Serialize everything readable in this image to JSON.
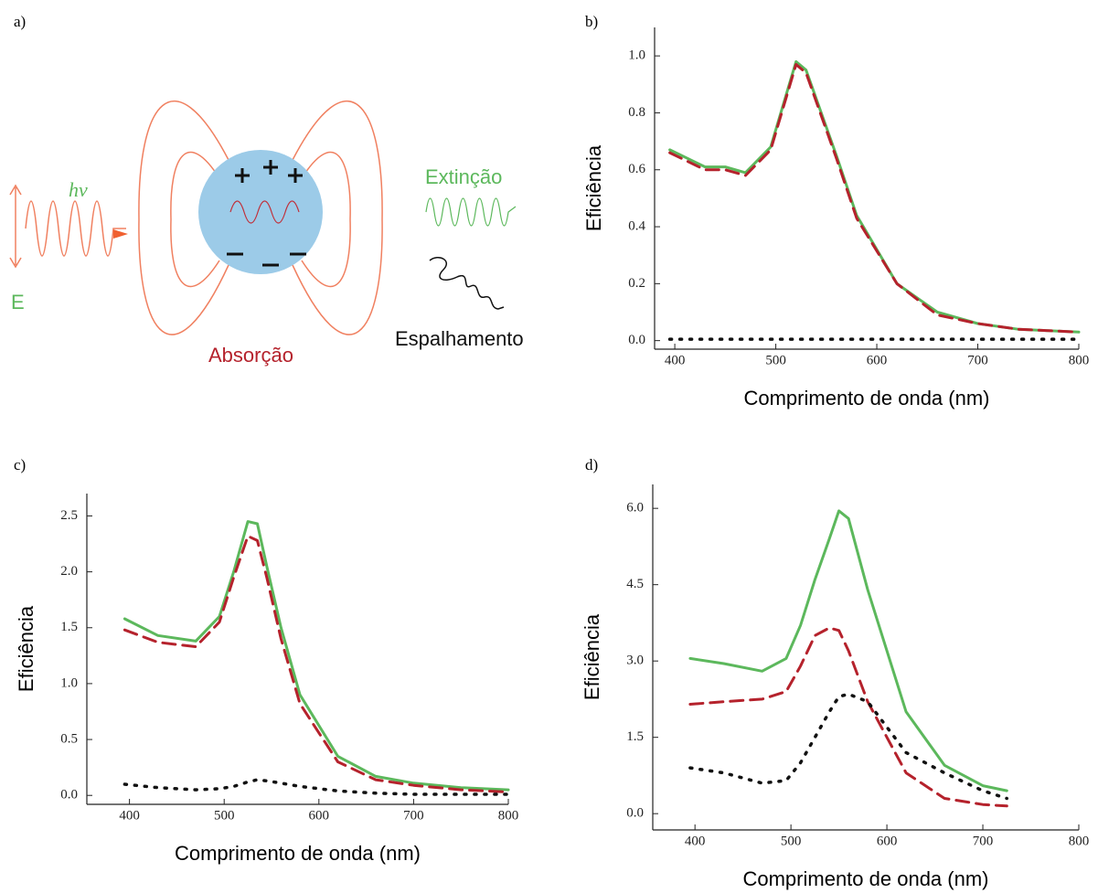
{
  "diagram": {
    "panel": "a)",
    "photon": "hν",
    "field": "E",
    "extinction": "Extinção",
    "scattering": "Espalhamento",
    "absorption": "Absorção"
  },
  "chart_data": [
    {
      "type": "line",
      "panel": "b)",
      "xlabel": "Comprimento de onda (nm)",
      "ylabel": "Eficiência",
      "x": [
        395,
        430,
        450,
        470,
        495,
        510,
        520,
        530,
        545,
        560,
        580,
        620,
        660,
        700,
        740,
        800
      ],
      "series": [
        {
          "color": "#5cb85c",
          "style": "solid",
          "values": [
            0.67,
            0.61,
            0.61,
            0.59,
            0.68,
            0.86,
            0.98,
            0.95,
            0.8,
            0.65,
            0.44,
            0.2,
            0.1,
            0.06,
            0.04,
            0.03
          ]
        },
        {
          "color": "#b5222c",
          "style": "dashed",
          "values": [
            0.66,
            0.6,
            0.6,
            0.58,
            0.67,
            0.85,
            0.97,
            0.94,
            0.79,
            0.64,
            0.43,
            0.2,
            0.09,
            0.06,
            0.04,
            0.03
          ]
        },
        {
          "color": "#111111",
          "style": "dotted",
          "values": [
            0.005,
            0.005,
            0.005,
            0.005,
            0.005,
            0.005,
            0.005,
            0.005,
            0.005,
            0.005,
            0.005,
            0.005,
            0.005,
            0.005,
            0.005,
            0.005
          ]
        }
      ],
      "xlim": [
        380,
        800
      ],
      "ylim": [
        -0.03,
        1.1
      ],
      "xticks": [
        400,
        500,
        600,
        700,
        800
      ],
      "yticks": [
        {
          "value": 0,
          "label": "0.0"
        },
        0.2,
        0.4,
        0.6,
        0.8,
        {
          "value": 1,
          "label": "1.0"
        }
      ]
    },
    {
      "type": "line",
      "panel": "c)",
      "xlabel": "Comprimento de onda (nm)",
      "ylabel": "Eficiência",
      "x": [
        395,
        430,
        470,
        495,
        510,
        525,
        535,
        545,
        560,
        580,
        620,
        660,
        700,
        750,
        800
      ],
      "series": [
        {
          "color": "#5cb85c",
          "style": "solid",
          "values": [
            1.58,
            1.43,
            1.38,
            1.6,
            2.0,
            2.45,
            2.43,
            2.05,
            1.5,
            0.9,
            0.35,
            0.17,
            0.11,
            0.07,
            0.05
          ]
        },
        {
          "color": "#b5222c",
          "style": "dashed",
          "values": [
            1.48,
            1.37,
            1.33,
            1.55,
            1.95,
            2.32,
            2.28,
            1.95,
            1.4,
            0.82,
            0.3,
            0.14,
            0.09,
            0.05,
            0.03
          ]
        },
        {
          "color": "#111111",
          "style": "dotted",
          "values": [
            0.1,
            0.07,
            0.05,
            0.06,
            0.08,
            0.12,
            0.14,
            0.13,
            0.11,
            0.08,
            0.04,
            0.02,
            0.01,
            0.01,
            0.01
          ]
        }
      ],
      "xlim": [
        355,
        800
      ],
      "ylim": [
        -0.08,
        2.7
      ],
      "xticks": [
        400,
        500,
        600,
        700,
        800
      ],
      "yticks": [
        {
          "value": 0,
          "label": "0.0"
        },
        0.5,
        {
          "value": 1,
          "label": "1.0"
        },
        1.5,
        {
          "value": 2,
          "label": "2.0"
        },
        2.5
      ]
    },
    {
      "type": "line",
      "panel": "d)",
      "xlabel": "Comprimento de onda (nm)",
      "ylabel": "Eficiência",
      "x": [
        395,
        430,
        470,
        495,
        510,
        525,
        540,
        550,
        560,
        580,
        620,
        660,
        700,
        725
      ],
      "series": [
        {
          "color": "#5cb85c",
          "style": "solid",
          "values": [
            3.05,
            2.95,
            2.8,
            3.05,
            3.7,
            4.6,
            5.4,
            5.95,
            5.8,
            4.4,
            2.0,
            0.95,
            0.55,
            0.45
          ]
        },
        {
          "color": "#b5222c",
          "style": "dashed",
          "values": [
            2.15,
            2.2,
            2.25,
            2.4,
            2.9,
            3.5,
            3.65,
            3.6,
            3.2,
            2.2,
            0.8,
            0.3,
            0.18,
            0.15
          ]
        },
        {
          "color": "#111111",
          "style": "dotted",
          "values": [
            0.9,
            0.8,
            0.6,
            0.65,
            1.0,
            1.5,
            2.0,
            2.3,
            2.35,
            2.2,
            1.2,
            0.8,
            0.45,
            0.3
          ]
        }
      ],
      "xlim": [
        356,
        800
      ],
      "ylim": [
        -0.32,
        6.47
      ],
      "xticks": [
        400,
        500,
        600,
        700,
        800
      ],
      "yticks": [
        {
          "value": 0,
          "label": "0.0"
        },
        1.5,
        {
          "value": 3,
          "label": "3.0"
        },
        4.5,
        {
          "value": 6,
          "label": "6.0"
        }
      ]
    }
  ]
}
